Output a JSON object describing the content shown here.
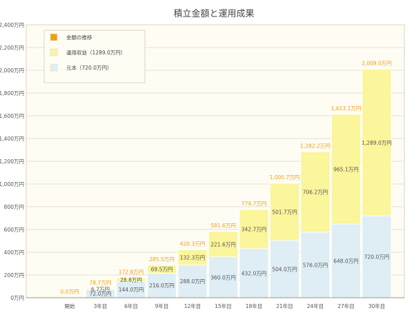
{
  "chart_data": {
    "type": "bar",
    "title": "積立金額と運用成果",
    "categories": [
      "開始",
      "3年目",
      "6年目",
      "9年目",
      "12年目",
      "15年目",
      "18年目",
      "21年目",
      "24年目",
      "27年目",
      "30年目"
    ],
    "series": [
      {
        "name": "元本（720.0万円）",
        "color": "#dfeef5",
        "values": [
          0,
          72.0,
          144.0,
          216.0,
          288.0,
          360.0,
          432.0,
          504.0,
          576.0,
          648.0,
          720.0
        ]
      },
      {
        "name": "運用収益（1289.0万円）",
        "color": "#fbf59b",
        "values": [
          0,
          6.7,
          28.8,
          69.5,
          132.3,
          221.6,
          342.7,
          501.7,
          706.2,
          965.1,
          1289.0
        ]
      }
    ],
    "totals_series": {
      "name": "金額の推移",
      "color": "#f39c12",
      "values": [
        0.0,
        78.7,
        172.8,
        285.5,
        420.3,
        581.6,
        774.7,
        1005.7,
        1282.2,
        1613.1,
        2009.0
      ]
    },
    "value_labels": {
      "principal": [
        "",
        "72.0万円",
        "144.0万円",
        "216.0万円",
        "288.0万円",
        "360.0万円",
        "432.0万円",
        "504.0万円",
        "576.0万円",
        "648.0万円",
        "720.0万円"
      ],
      "gain": [
        "",
        "6.7万円",
        "28.8万円",
        "69.5万円",
        "132.3万円",
        "221.6万円",
        "342.7万円",
        "501.7万円",
        "706.2万円",
        "965.1万円",
        "1,289.0万円"
      ],
      "total": [
        "0.0万円",
        "78.7万円",
        "172.8万円",
        "285.5万円",
        "420.3万円",
        "581.6万円",
        "774.7万円",
        "1,005.7万円",
        "1,282.2万円",
        "1,613.1万円",
        "2,009.0万円"
      ]
    },
    "ylim": [
      0,
      2400
    ],
    "y_ticks": [
      0,
      200,
      400,
      600,
      800,
      1000,
      1200,
      1400,
      1600,
      1800,
      2000,
      2200,
      2400
    ],
    "y_tick_labels": [
      "0万円",
      "200万円",
      "400万円",
      "600万円",
      "800万円",
      "1,000万円",
      "1,200万円",
      "1,400万円",
      "1,600万円",
      "1,800万円",
      "2,000万円",
      "2,200万円",
      "2,400万円"
    ],
    "grid": true,
    "legend_position": "top-left"
  }
}
